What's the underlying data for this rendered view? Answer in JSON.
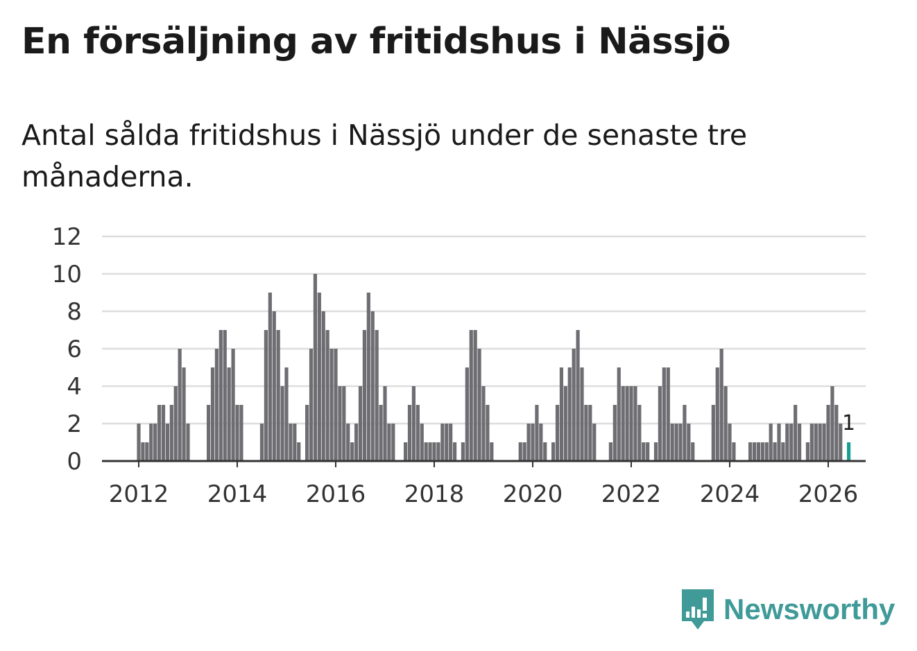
{
  "header": {
    "title": "En försäljning av fritidshus i Nässjö",
    "subtitle": "Antal sålda fritidshus i Nässjö under de senaste tre månaderna."
  },
  "brand": {
    "name": "Newsworthy",
    "color": "#3f9a98",
    "icon": "newsworthy-logo-icon"
  },
  "colors": {
    "bar": "#6e6d72",
    "highlight": "#1a9e92",
    "grid": "#dddddd",
    "axis": "#333333"
  },
  "chart_data": {
    "type": "bar",
    "title": "En försäljning av fritidshus i Nässjö",
    "subtitle": "Antal sålda fritidshus i Nässjö under de senaste tre månaderna.",
    "xlabel": "",
    "ylabel": "",
    "ylim": [
      0,
      12
    ],
    "yticks": [
      0,
      2,
      4,
      6,
      8,
      10,
      12
    ],
    "xticks": [
      "2012",
      "2014",
      "2016",
      "2018",
      "2020",
      "2022",
      "2024",
      "2026"
    ],
    "start": {
      "year": 2012,
      "month": 1
    },
    "frequency": "monthly",
    "grid": true,
    "last_value_label": "1",
    "values": [
      2,
      1,
      1,
      2,
      2,
      3,
      3,
      2,
      3,
      4,
      6,
      5,
      2,
      0,
      0,
      0,
      0,
      3,
      5,
      6,
      7,
      7,
      5,
      6,
      3,
      3,
      0,
      0,
      0,
      0,
      2,
      7,
      9,
      8,
      7,
      4,
      5,
      2,
      2,
      1,
      0,
      3,
      6,
      10,
      9,
      8,
      7,
      6,
      6,
      4,
      4,
      2,
      1,
      2,
      4,
      7,
      9,
      8,
      7,
      3,
      4,
      2,
      2,
      0,
      0,
      1,
      3,
      4,
      3,
      2,
      1,
      1,
      1,
      1,
      2,
      2,
      2,
      1,
      0,
      1,
      5,
      7,
      7,
      6,
      4,
      3,
      1,
      0,
      0,
      0,
      0,
      0,
      0,
      1,
      1,
      2,
      2,
      3,
      2,
      1,
      0,
      1,
      3,
      5,
      4,
      5,
      6,
      7,
      5,
      3,
      3,
      2,
      0,
      0,
      0,
      1,
      3,
      5,
      4,
      4,
      4,
      4,
      3,
      1,
      1,
      0,
      1,
      4,
      5,
      5,
      2,
      2,
      2,
      3,
      2,
      1,
      0,
      0,
      0,
      0,
      3,
      5,
      6,
      4,
      2,
      1,
      0,
      0,
      0,
      1,
      1,
      1,
      1,
      1,
      2,
      1,
      2,
      1,
      2,
      2,
      3,
      2,
      0,
      1,
      2,
      2,
      2,
      2,
      3,
      4,
      3,
      2,
      0,
      1
    ]
  }
}
